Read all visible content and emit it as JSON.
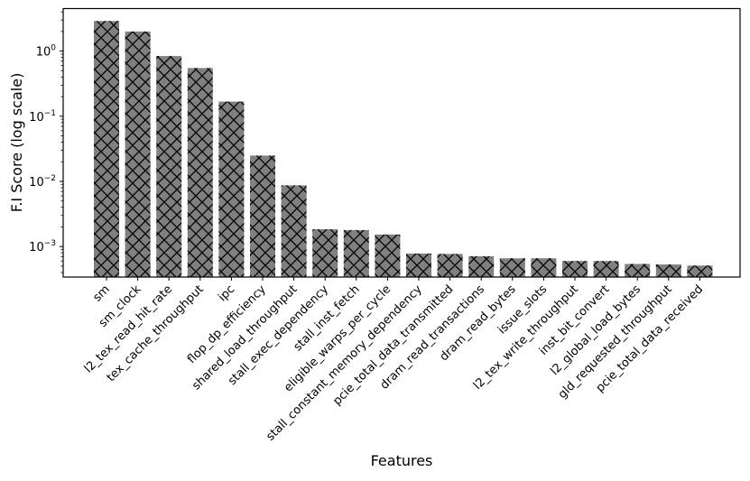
{
  "chart_data": {
    "type": "bar",
    "title": "",
    "xlabel": "Features",
    "ylabel": "F.I Score (log scale)",
    "yscale": "log",
    "ylim": [
      0.00034,
      4.5
    ],
    "grid": false,
    "bar_color": "#808080",
    "hatch": "crosshatch",
    "yticks": [
      {
        "value": 1,
        "base": "10",
        "exp": "0"
      },
      {
        "value": 0.1,
        "base": "10",
        "exp": "−1"
      },
      {
        "value": 0.01,
        "base": "10",
        "exp": "−2"
      },
      {
        "value": 0.001,
        "base": "10",
        "exp": "−3"
      }
    ],
    "categories": [
      "sm",
      "sm_clock",
      "l2_tex_read_hit_rate",
      "tex_cache_throughput",
      "ipc",
      "flop_dp_efficiency",
      "shared_load_throughput",
      "stall_exec_dependency",
      "stall_inst_fetch",
      "eligible_warps_per_cycle",
      "stall_constant_memory_dependency",
      "pcie_total_data_transmitted",
      "dram_read_transactions",
      "dram_read_bytes",
      "issue_slots",
      "l2_tex_write_throughput",
      "inst_bit_convert",
      "l2_global_load_bytes",
      "gld_requested_throughput",
      "pcie_total_data_received"
    ],
    "values": [
      2.9,
      2.0,
      0.84,
      0.55,
      0.168,
      0.0249,
      0.0087,
      0.00184,
      0.00179,
      0.00153,
      0.00078,
      0.00077,
      0.00071,
      0.00066,
      0.00066,
      0.0006,
      0.0006,
      0.00054,
      0.00053,
      0.00051
    ]
  }
}
